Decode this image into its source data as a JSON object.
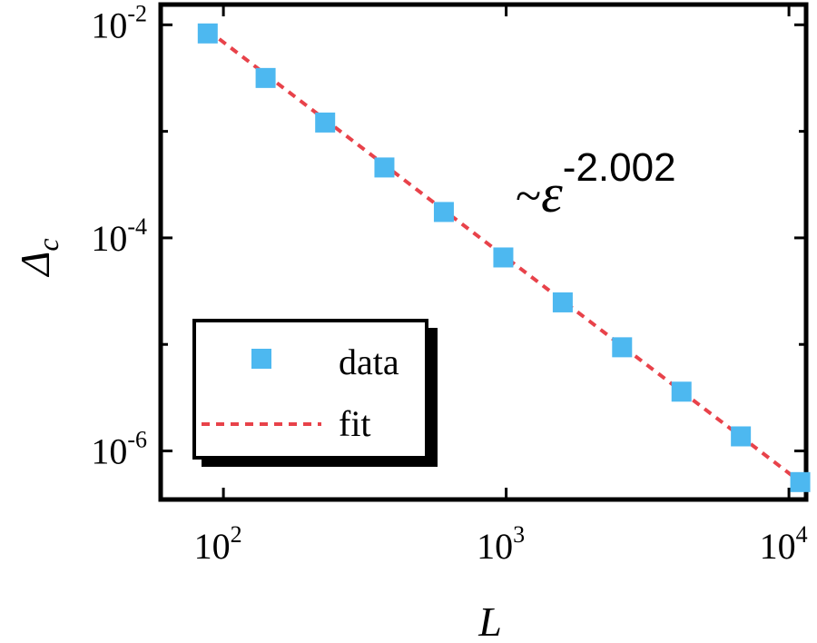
{
  "chart_data": {
    "type": "scatter",
    "x_scale": "log",
    "y_scale": "log",
    "xlim": [
      60,
      11500
    ],
    "ylim": [
      3.5e-07,
      0.0155
    ],
    "xlabel": "L",
    "ylabel": {
      "main": "Δ",
      "sub": "c"
    },
    "x_ticks": [
      {
        "value": 100,
        "base": "10",
        "exp": "2"
      },
      {
        "value": 1000,
        "base": "10",
        "exp": "3"
      },
      {
        "value": 10000,
        "base": "10",
        "exp": "4"
      }
    ],
    "y_ticks": [
      {
        "value": 1e-06,
        "base": "10",
        "exp": "-6"
      },
      {
        "value": 0.0001,
        "base": "10",
        "exp": "-4"
      },
      {
        "value": 0.01,
        "base": "10",
        "exp": "-2"
      }
    ],
    "y_minor_ticks": [
      1e-05,
      0.001
    ],
    "grid": false,
    "legend_position": "bottom-left",
    "series": [
      {
        "name": "data",
        "kind": "markers",
        "marker": "square",
        "color": "#4db8f0",
        "x": [
          88,
          141,
          229,
          371,
          602,
          977,
          1585,
          2570,
          4169,
          6761,
          10965
        ],
        "y": [
          0.0083,
          0.00317,
          0.00121,
          0.000458,
          0.000175,
          6.55e-05,
          2.48e-05,
          9.4e-06,
          3.6e-06,
          1.37e-06,
          5.1e-07
        ]
      },
      {
        "name": "fit",
        "kind": "line",
        "style": "dashed",
        "color": "#e8424a",
        "exponent": -2.002,
        "x": [
          88,
          11000
        ],
        "y": [
          0.0089,
          5.1e-07
        ]
      }
    ],
    "annotation": {
      "prefix": "~",
      "symbol": "ε",
      "exponent": "-2.002"
    }
  }
}
